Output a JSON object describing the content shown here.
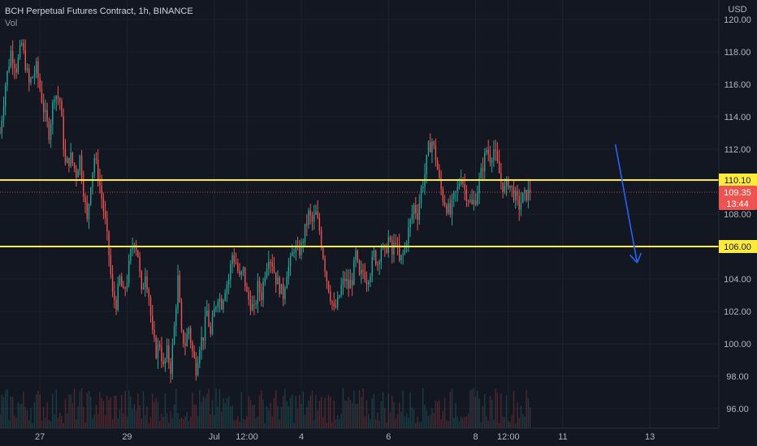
{
  "header": {
    "title": "BCH Perpetual Futures Contract, 1h, BINANCE",
    "indicator": "Vol"
  },
  "currency_label": "USD",
  "colors": {
    "background": "#131722",
    "up": "#26a69a",
    "down": "#ef5350",
    "level_line": "#ffeb3b",
    "arrow": "#2962ff",
    "axis_text": "#b2b5be",
    "grid": "#1e222d"
  },
  "price_tag": {
    "price": "109.35",
    "countdown": "13:44"
  },
  "chart_data": {
    "type": "candlestick",
    "title": "BCH Perpetual Futures Contract, 1h, BINANCE",
    "ylim": [
      94.8,
      121.2
    ],
    "y_ticks": [
      96,
      98,
      100,
      102,
      104,
      106,
      108,
      110,
      112,
      114,
      116,
      118,
      120
    ],
    "x_ticks": [
      "27",
      "29",
      "Jul",
      "12:00",
      "4",
      "6",
      "8",
      "12:00",
      "11",
      "13"
    ],
    "x_tick_positions": [
      0,
      48,
      96,
      114,
      144,
      192,
      240,
      258,
      288,
      336
    ],
    "x_range": [
      -22,
      395
    ],
    "last_price": 109.35,
    "levels": [
      {
        "value": 110.1,
        "label": "110.10"
      },
      {
        "value": 106.0,
        "label": "106.00"
      }
    ],
    "projection_arrow": {
      "from": [
        317,
        112.3
      ],
      "to": [
        329,
        105.0
      ]
    },
    "price_path": [
      [
        -22,
        113.0
      ],
      [
        -19,
        116.0
      ],
      [
        -16,
        118.0
      ],
      [
        -13,
        117.0
      ],
      [
        -10,
        118.5
      ],
      [
        -6,
        116.0
      ],
      [
        -2,
        117.0
      ],
      [
        2,
        114.5
      ],
      [
        5,
        113.0
      ],
      [
        8,
        115.5
      ],
      [
        11,
        115.0
      ],
      [
        14,
        111.0
      ],
      [
        17,
        111.5
      ],
      [
        20,
        110.5
      ],
      [
        22,
        111.5
      ],
      [
        24,
        109.5
      ],
      [
        26,
        107.5
      ],
      [
        28,
        110.0
      ],
      [
        30,
        111.5
      ],
      [
        32,
        110.5
      ],
      [
        34,
        109.0
      ],
      [
        36,
        107.5
      ],
      [
        38,
        105.5
      ],
      [
        40,
        103.0
      ],
      [
        42,
        102.5
      ],
      [
        44,
        104.0
      ],
      [
        46,
        103.0
      ],
      [
        48,
        104.0
      ],
      [
        50,
        105.5
      ],
      [
        52,
        106.5
      ],
      [
        54,
        105.5
      ],
      [
        56,
        103.0
      ],
      [
        58,
        104.5
      ],
      [
        60,
        103.0
      ],
      [
        62,
        100.5
      ],
      [
        64,
        99.5
      ],
      [
        66,
        100.0
      ],
      [
        68,
        98.5
      ],
      [
        70,
        99.5
      ],
      [
        72,
        98.5
      ],
      [
        74,
        101.0
      ],
      [
        76,
        104.0
      ],
      [
        78,
        100.5
      ],
      [
        80,
        100.0
      ],
      [
        82,
        101.0
      ],
      [
        84,
        99.5
      ],
      [
        86,
        98.5
      ],
      [
        88,
        100.0
      ],
      [
        90,
        100.5
      ],
      [
        92,
        102.0
      ],
      [
        94,
        100.5
      ],
      [
        96,
        102.0
      ],
      [
        98,
        103.0
      ],
      [
        100,
        102.5
      ],
      [
        102,
        103.5
      ],
      [
        104,
        104.0
      ],
      [
        106,
        105.5
      ],
      [
        108,
        105.0
      ],
      [
        110,
        104.0
      ],
      [
        112,
        104.5
      ],
      [
        114,
        103.0
      ],
      [
        116,
        102.5
      ],
      [
        118,
        102.0
      ],
      [
        120,
        103.5
      ],
      [
        122,
        103.0
      ],
      [
        124,
        104.5
      ],
      [
        126,
        105.5
      ],
      [
        128,
        105.0
      ],
      [
        130,
        104.0
      ],
      [
        132,
        103.5
      ],
      [
        134,
        103.0
      ],
      [
        136,
        104.5
      ],
      [
        138,
        105.0
      ],
      [
        140,
        106.0
      ],
      [
        142,
        105.5
      ],
      [
        144,
        106.0
      ],
      [
        146,
        107.0
      ],
      [
        148,
        108.0
      ],
      [
        150,
        107.5
      ],
      [
        152,
        108.0
      ],
      [
        154,
        107.0
      ],
      [
        156,
        105.5
      ],
      [
        158,
        104.0
      ],
      [
        160,
        103.0
      ],
      [
        162,
        102.0
      ],
      [
        164,
        102.5
      ],
      [
        166,
        103.5
      ],
      [
        168,
        104.0
      ],
      [
        170,
        103.5
      ],
      [
        172,
        104.0
      ],
      [
        174,
        105.5
      ],
      [
        176,
        104.0
      ],
      [
        178,
        104.5
      ],
      [
        180,
        104.0
      ],
      [
        182,
        104.5
      ],
      [
        184,
        105.5
      ],
      [
        186,
        105.0
      ],
      [
        188,
        106.0
      ],
      [
        190,
        105.5
      ],
      [
        192,
        106.5
      ],
      [
        194,
        105.5
      ],
      [
        196,
        106.5
      ],
      [
        198,
        105.0
      ],
      [
        200,
        105.5
      ],
      [
        202,
        106.5
      ],
      [
        204,
        107.5
      ],
      [
        206,
        108.5
      ],
      [
        208,
        108.0
      ],
      [
        210,
        109.5
      ],
      [
        212,
        110.5
      ],
      [
        214,
        112.0
      ],
      [
        216,
        112.5
      ],
      [
        218,
        111.5
      ],
      [
        220,
        110.0
      ],
      [
        222,
        109.0
      ],
      [
        224,
        108.5
      ],
      [
        226,
        108.0
      ],
      [
        228,
        109.0
      ],
      [
        230,
        109.5
      ],
      [
        232,
        110.5
      ],
      [
        234,
        109.5
      ],
      [
        236,
        109.0
      ],
      [
        238,
        108.5
      ],
      [
        240,
        109.0
      ],
      [
        242,
        110.0
      ],
      [
        244,
        111.0
      ],
      [
        246,
        112.0
      ],
      [
        248,
        111.5
      ],
      [
        250,
        112.0
      ],
      [
        252,
        111.0
      ],
      [
        254,
        110.0
      ],
      [
        256,
        109.5
      ],
      [
        258,
        110.0
      ],
      [
        260,
        109.5
      ],
      [
        262,
        109.0
      ],
      [
        264,
        108.5
      ],
      [
        266,
        109.0
      ],
      [
        268,
        109.2
      ],
      [
        270,
        109.35
      ]
    ]
  }
}
